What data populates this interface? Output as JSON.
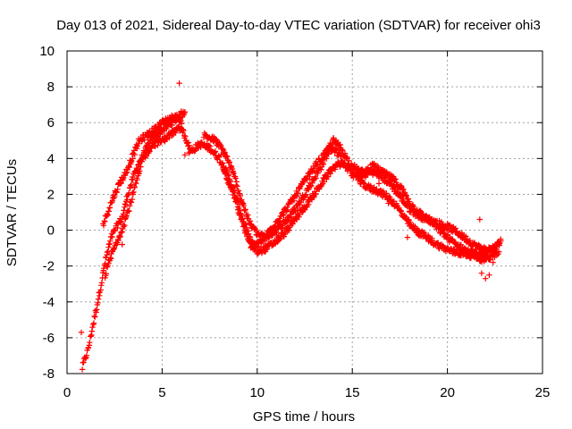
{
  "chart_data": {
    "type": "scatter",
    "title": "Day 013 of 2021, Sidereal Day-to-day VTEC variation (SDTVAR) for receiver ohi3",
    "xlabel": "GPS time / hours",
    "ylabel": "SDTVAR / TECUs",
    "xlim": [
      0,
      25
    ],
    "ylim": [
      -8,
      10
    ],
    "xticks": [
      "0",
      "5",
      "10",
      "15",
      "20",
      "25"
    ],
    "yticks": [
      "-8",
      "-6",
      "-4",
      "-2",
      "0",
      "2",
      "4",
      "6",
      "8",
      "10"
    ],
    "grid": true,
    "marker": "+",
    "color": "#ff0000",
    "series": [
      {
        "name": "SDTVAR",
        "trace_a": [
          [
            0.8,
            -7.7
          ],
          [
            0.9,
            -7.3
          ],
          [
            1.0,
            -7.0
          ],
          [
            1.1,
            -6.7
          ],
          [
            1.8,
            -3.0
          ],
          [
            2.0,
            -1.8
          ],
          [
            2.3,
            -0.5
          ],
          [
            2.6,
            0.2
          ],
          [
            2.9,
            0.7
          ],
          [
            3.2,
            2.0
          ],
          [
            3.5,
            3.0
          ],
          [
            3.8,
            3.8
          ],
          [
            4.1,
            4.4
          ],
          [
            4.4,
            5.0
          ],
          [
            4.7,
            5.3
          ],
          [
            5.0,
            5.6
          ],
          [
            5.3,
            5.8
          ],
          [
            5.6,
            6.1
          ],
          [
            5.9,
            6.3
          ],
          [
            6.1,
            5.5
          ],
          [
            6.3,
            5.0
          ],
          [
            6.5,
            4.4
          ],
          [
            7.0,
            4.8
          ],
          [
            7.5,
            4.6
          ],
          [
            8.0,
            4.0
          ],
          [
            8.5,
            3.0
          ],
          [
            9.0,
            1.5
          ],
          [
            9.3,
            0.4
          ],
          [
            9.6,
            -0.5
          ],
          [
            9.9,
            -0.9
          ],
          [
            10.2,
            -0.6
          ],
          [
            10.6,
            -0.3
          ],
          [
            11.0,
            0.0
          ],
          [
            11.4,
            0.4
          ],
          [
            11.8,
            0.9
          ],
          [
            12.2,
            1.5
          ],
          [
            12.6,
            2.2
          ],
          [
            13.0,
            2.9
          ],
          [
            13.4,
            3.6
          ],
          [
            13.7,
            4.3
          ],
          [
            14.0,
            4.6
          ],
          [
            14.3,
            4.2
          ],
          [
            14.6,
            3.6
          ],
          [
            15.0,
            3.1
          ],
          [
            15.5,
            3.0
          ],
          [
            16.0,
            3.3
          ],
          [
            16.5,
            3.0
          ],
          [
            17.0,
            2.6
          ],
          [
            17.5,
            1.9
          ],
          [
            18.0,
            1.2
          ],
          [
            18.5,
            0.8
          ],
          [
            19.0,
            0.6
          ],
          [
            19.5,
            0.4
          ],
          [
            20.0,
            0.2
          ],
          [
            20.5,
            -0.1
          ],
          [
            21.0,
            -0.5
          ],
          [
            21.5,
            -0.9
          ],
          [
            22.0,
            -1.1
          ],
          [
            22.5,
            -1.0
          ],
          [
            22.8,
            -0.6
          ]
        ],
        "trace_b": [
          [
            1.9,
            0.3
          ],
          [
            2.2,
            1.2
          ],
          [
            2.5,
            2.0
          ],
          [
            2.8,
            2.7
          ],
          [
            3.0,
            3.0
          ],
          [
            3.4,
            4.0
          ],
          [
            3.8,
            5.0
          ],
          [
            4.2,
            5.3
          ],
          [
            4.6,
            5.6
          ],
          [
            5.0,
            6.0
          ],
          [
            5.3,
            6.2
          ],
          [
            5.8,
            6.3
          ],
          [
            6.2,
            6.6
          ],
          [
            7.2,
            5.3
          ],
          [
            7.8,
            5.0
          ],
          [
            8.3,
            4.3
          ],
          [
            8.8,
            3.0
          ],
          [
            9.2,
            1.6
          ],
          [
            9.6,
            0.4
          ],
          [
            10.0,
            -0.2
          ],
          [
            10.4,
            -0.4
          ],
          [
            10.8,
            0.2
          ],
          [
            11.2,
            0.7
          ],
          [
            11.6,
            1.3
          ],
          [
            12.0,
            1.9
          ],
          [
            12.4,
            2.6
          ],
          [
            12.8,
            3.2
          ],
          [
            13.2,
            3.8
          ],
          [
            13.6,
            4.3
          ],
          [
            14.0,
            5.0
          ],
          [
            14.4,
            4.6
          ],
          [
            14.8,
            3.8
          ],
          [
            15.2,
            3.4
          ],
          [
            15.6,
            3.2
          ],
          [
            16.1,
            3.6
          ],
          [
            16.6,
            3.2
          ],
          [
            17.1,
            2.9
          ],
          [
            17.6,
            2.3
          ],
          [
            18.1,
            1.4
          ],
          [
            18.6,
            0.9
          ],
          [
            19.1,
            0.5
          ],
          [
            19.6,
            0.0
          ],
          [
            20.1,
            -0.5
          ],
          [
            20.6,
            -0.9
          ],
          [
            21.1,
            -1.2
          ],
          [
            21.6,
            -1.4
          ],
          [
            22.1,
            -1.3
          ],
          [
            22.6,
            -0.9
          ]
        ],
        "trace_c": [
          [
            2.0,
            -2.5
          ],
          [
            2.4,
            -1.2
          ],
          [
            2.8,
            -0.2
          ],
          [
            3.2,
            1.0
          ],
          [
            3.6,
            2.5
          ],
          [
            4.0,
            4.0
          ],
          [
            4.5,
            4.8
          ],
          [
            5.0,
            5.0
          ],
          [
            5.5,
            5.4
          ],
          [
            6.0,
            5.7
          ],
          [
            7.3,
            4.6
          ],
          [
            8.2,
            3.5
          ],
          [
            8.7,
            2.2
          ],
          [
            9.2,
            0.5
          ],
          [
            9.6,
            -0.8
          ],
          [
            10.0,
            -1.2
          ],
          [
            10.5,
            -1.0
          ],
          [
            11.0,
            -0.6
          ],
          [
            11.5,
            -0.1
          ],
          [
            12.0,
            0.6
          ],
          [
            12.5,
            1.3
          ],
          [
            13.0,
            2.0
          ],
          [
            13.5,
            2.8
          ],
          [
            14.0,
            3.5
          ],
          [
            14.5,
            3.8
          ],
          [
            15.3,
            2.8
          ],
          [
            15.8,
            2.4
          ],
          [
            16.3,
            2.2
          ],
          [
            16.8,
            1.9
          ],
          [
            17.3,
            1.4
          ],
          [
            17.8,
            0.6
          ],
          [
            18.3,
            0.0
          ],
          [
            18.8,
            -0.3
          ],
          [
            19.3,
            -0.7
          ],
          [
            19.8,
            -1.0
          ],
          [
            20.3,
            -1.2
          ],
          [
            20.8,
            -1.3
          ],
          [
            21.3,
            -1.4
          ],
          [
            21.8,
            -1.6
          ],
          [
            22.3,
            -1.5
          ],
          [
            22.7,
            -1.2
          ]
        ],
        "outliers": [
          [
            0.75,
            -5.7
          ],
          [
            2.9,
            -0.8
          ],
          [
            5.9,
            8.2
          ],
          [
            6.2,
            4.2
          ],
          [
            6.4,
            4.3
          ],
          [
            8.1,
            4.2
          ],
          [
            15.0,
            3.6
          ],
          [
            15.4,
            2.7
          ],
          [
            18.3,
            0.2
          ],
          [
            18.5,
            -0.3
          ],
          [
            21.7,
            0.6
          ],
          [
            21.8,
            -2.4
          ],
          [
            22.0,
            -2.7
          ],
          [
            22.2,
            -2.5
          ],
          [
            22.4,
            -1.8
          ],
          [
            22.6,
            -1.4
          ],
          [
            22.8,
            -0.5
          ],
          [
            17.9,
            -0.4
          ],
          [
            16.4,
            2.6
          ],
          [
            16.9,
            1.5
          ]
        ]
      }
    ]
  }
}
